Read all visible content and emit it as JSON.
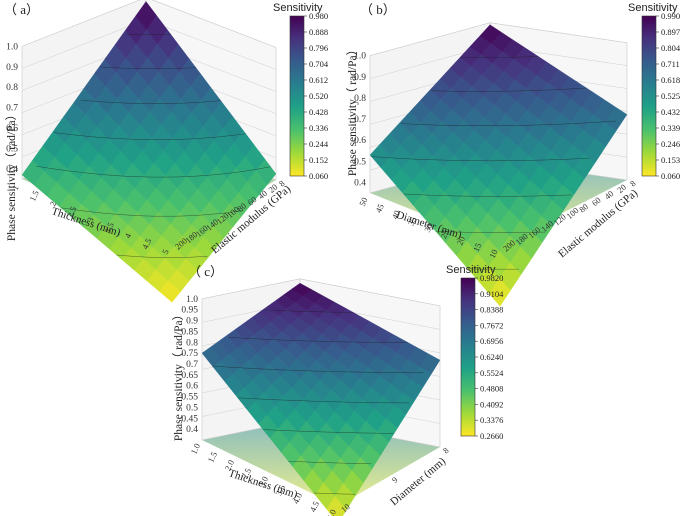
{
  "colormap": [
    "#fde725",
    "#a0da39",
    "#4ac16d",
    "#1fa187",
    "#277f8e",
    "#365c8d",
    "#46327e",
    "#440154"
  ],
  "chart_data": [
    {
      "type": "surface",
      "label": "（ a）",
      "zlabel": "Phase sensitivity（ rad/Pa）",
      "zticks": [
        "0.4",
        "0.5",
        "0.6",
        "0.7",
        "0.8",
        "0.9",
        "1.0"
      ],
      "zlim": [
        0.35,
        1.0
      ],
      "axis_a_label": "Thickness (mm)",
      "axis_a_ticks": [
        "1",
        "1.5",
        "2",
        "2.5",
        "3",
        "3.5",
        "4",
        "4.5",
        "5"
      ],
      "axis_b_label": "Elastic modulus (GPa)",
      "axis_b_ticks": [
        "8",
        "20",
        "40",
        "60",
        "80",
        "100",
        "120",
        "140",
        "160",
        "180",
        "200"
      ],
      "corner_values": {
        "near": 0.06,
        "left": 0.37,
        "right": 0.38,
        "back": 0.98
      },
      "colorbar": {
        "title": "Sensitivity",
        "ticks": [
          "0.980",
          "0.888",
          "0.796",
          "0.704",
          "0.612",
          "0.520",
          "0.428",
          "0.336",
          "0.244",
          "0.152",
          "0.060"
        ],
        "min": 0.06,
        "max": 0.98
      }
    },
    {
      "type": "surface",
      "label": "（ b）",
      "zlabel": "Phase sensitivity（ rad/Pa）",
      "zticks": [
        "0.4",
        "0.5",
        "0.6",
        "0.7",
        "0.8",
        "0.9",
        "1.0"
      ],
      "zlim": [
        0.35,
        1.0
      ],
      "axis_a_label": "Diameter (mm)",
      "axis_a_ticks": [
        "50",
        "45",
        "40",
        "35",
        "30",
        "25",
        "20",
        "15",
        "10"
      ],
      "axis_b_label": "Elastic modulus (GPa)",
      "axis_b_ticks": [
        "8",
        "20",
        "40",
        "60",
        "80",
        "100",
        "120",
        "140",
        "160",
        "180",
        "200"
      ],
      "corner_values": {
        "near": 0.06,
        "left": 0.53,
        "right": 0.66,
        "back": 0.99
      },
      "colorbar": {
        "title": "Sensitivity",
        "ticks": [
          "0.990",
          "0.897",
          "0.804",
          "0.711",
          "0.618",
          "0.525",
          "0.432",
          "0.339",
          "0.246",
          "0.153",
          "0.060"
        ],
        "min": 0.06,
        "max": 0.99
      }
    },
    {
      "type": "surface",
      "label": "（ c）",
      "zlabel": "Phase sensitivity（ rad/Pa）",
      "zticks": [
        "0.4",
        "0.45",
        "0.5",
        "0.55",
        "0.6",
        "0.65",
        "0.7",
        "0.75",
        "0.8",
        "0.85",
        "0.9",
        "0.95",
        "1.0"
      ],
      "zlim": [
        0.35,
        1.0
      ],
      "axis_a_label": "Thickness (mm)",
      "axis_a_ticks": [
        "1.0",
        "1.5",
        "2.0",
        "2.5",
        "3.0",
        "3.5",
        "4.0",
        "4.5",
        "5.0"
      ],
      "axis_b_label": "Diameter (mm)",
      "axis_b_ticks": [
        "8",
        "9",
        "10"
      ],
      "corner_values": {
        "near": 0.27,
        "left": 0.75,
        "right": 0.75,
        "back": 0.98
      },
      "colorbar": {
        "title": "Sensitivity",
        "ticks": [
          "0.9820",
          "0.9104",
          "0.8388",
          "0.7672",
          "0.6956",
          "0.6240",
          "0.5524",
          "0.4808",
          "0.4092",
          "0.3376",
          "0.2660"
        ],
        "min": 0.266,
        "max": 0.982
      }
    }
  ]
}
